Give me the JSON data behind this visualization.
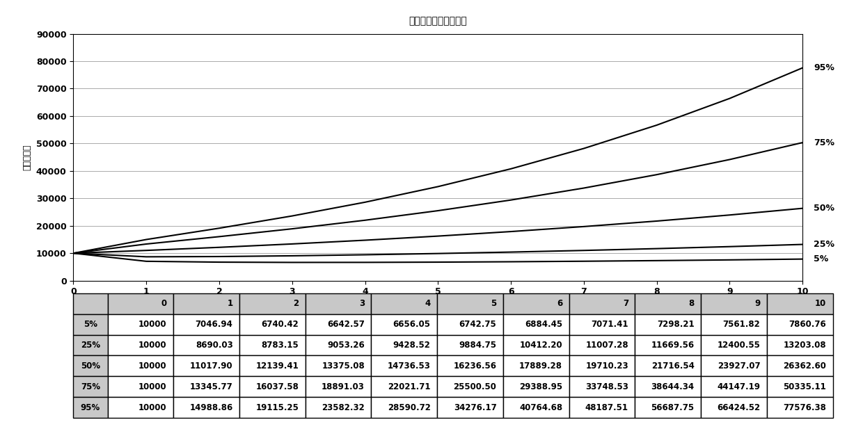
{
  "title": "正态分布情形资产总値",
  "ylabel": "资产总价値",
  "xlim": [
    0,
    10
  ],
  "ylim": [
    0,
    90000
  ],
  "yticks": [
    0,
    10000,
    20000,
    30000,
    40000,
    50000,
    60000,
    70000,
    80000,
    90000
  ],
  "xticks": [
    0,
    1,
    2,
    3,
    4,
    5,
    6,
    7,
    8,
    9,
    10
  ],
  "series_labels": [
    "5%",
    "25%",
    "50%",
    "75%",
    "95%"
  ],
  "series_data": [
    [
      10000,
      7046.94,
      6740.42,
      6642.57,
      6656.05,
      6742.75,
      6884.45,
      7071.41,
      7298.21,
      7561.82,
      7860.76
    ],
    [
      10000,
      8690.03,
      8783.15,
      9053.26,
      9428.52,
      9884.75,
      10412.2,
      11007.28,
      11669.56,
      12400.55,
      13203.08
    ],
    [
      10000,
      11017.9,
      12139.41,
      13375.08,
      14736.53,
      16236.56,
      17889.28,
      19710.23,
      21716.54,
      23927.07,
      26362.6
    ],
    [
      10000,
      13345.77,
      16037.58,
      18891.03,
      22021.71,
      25500.5,
      29388.95,
      33748.53,
      38644.34,
      44147.19,
      50335.11
    ],
    [
      10000,
      14988.86,
      19115.25,
      23582.32,
      28590.72,
      34276.17,
      40764.68,
      48187.51,
      56687.75,
      66424.52,
      77576.38
    ]
  ],
  "table_header": [
    "",
    "0",
    "1",
    "2",
    "3",
    "4",
    "5",
    "6",
    "7",
    "8",
    "9",
    "10"
  ],
  "table_rows": [
    [
      "5%",
      "10000",
      "7046.94",
      "6740.42",
      "6642.57",
      "6656.05",
      "6742.75",
      "6884.45",
      "7071.41",
      "7298.21",
      "7561.82",
      "7860.76"
    ],
    [
      "25%",
      "10000",
      "8690.03",
      "8783.15",
      "9053.26",
      "9428.52",
      "9884.75",
      "10412.20",
      "11007.28",
      "11669.56",
      "12400.55",
      "13203.08"
    ],
    [
      "50%",
      "10000",
      "11017.90",
      "12139.41",
      "13375.08",
      "14736.53",
      "16236.56",
      "17889.28",
      "19710.23",
      "21716.54",
      "23927.07",
      "26362.60"
    ],
    [
      "75%",
      "10000",
      "13345.77",
      "16037.58",
      "18891.03",
      "22021.71",
      "25500.50",
      "29388.95",
      "33748.53",
      "38644.34",
      "44147.19",
      "50335.11"
    ],
    [
      "95%",
      "10000",
      "14988.86",
      "19115.25",
      "23582.32",
      "28590.72",
      "34276.17",
      "40764.68",
      "48187.51",
      "56687.75",
      "66424.52",
      "77576.38"
    ]
  ],
  "line_color": "#000000",
  "background_color": "#ffffff",
  "title_fontsize": 16,
  "label_fontsize": 9,
  "tick_fontsize": 9,
  "table_fontsize": 8.5,
  "annotation_fontsize": 9
}
